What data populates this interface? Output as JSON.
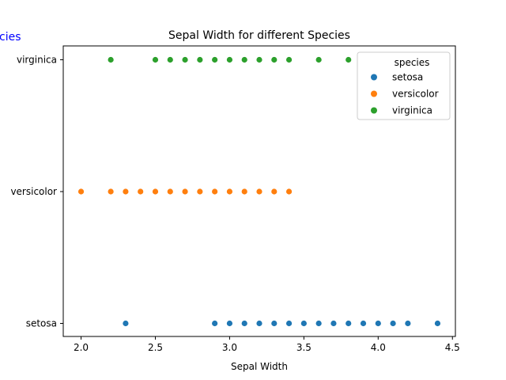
{
  "chart_data": {
    "type": "scatter",
    "title": "Sepal Width for different Species",
    "xlabel": "Sepal Width",
    "ylabel": "",
    "xlim": [
      1.88,
      4.52
    ],
    "xticks": [
      "2.0",
      "2.5",
      "3.0",
      "3.5",
      "4.0",
      "4.5"
    ],
    "xtick_values": [
      2.0,
      2.5,
      3.0,
      3.5,
      4.0,
      4.5
    ],
    "categories": [
      "setosa",
      "versicolor",
      "virginica"
    ],
    "grid": false,
    "legend_placement": "top-right",
    "legend_title": "species",
    "series": [
      {
        "name": "setosa",
        "category": "setosa",
        "color": "#1f77b4",
        "x": [
          2.3,
          2.9,
          3.0,
          3.1,
          3.2,
          3.3,
          3.4,
          3.5,
          3.6,
          3.7,
          3.8,
          3.9,
          4.0,
          4.1,
          4.2,
          4.4
        ]
      },
      {
        "name": "versicolor",
        "category": "versicolor",
        "color": "#ff7f0e",
        "x": [
          2.0,
          2.2,
          2.3,
          2.4,
          2.5,
          2.6,
          2.7,
          2.8,
          2.9,
          3.0,
          3.1,
          3.2,
          3.3,
          3.4
        ]
      },
      {
        "name": "virginica",
        "category": "virginica",
        "color": "#2ca02c",
        "x": [
          2.2,
          2.5,
          2.6,
          2.7,
          2.8,
          2.9,
          3.0,
          3.1,
          3.2,
          3.3,
          3.4,
          3.6,
          3.8
        ]
      }
    ]
  },
  "corner_text": "cies"
}
